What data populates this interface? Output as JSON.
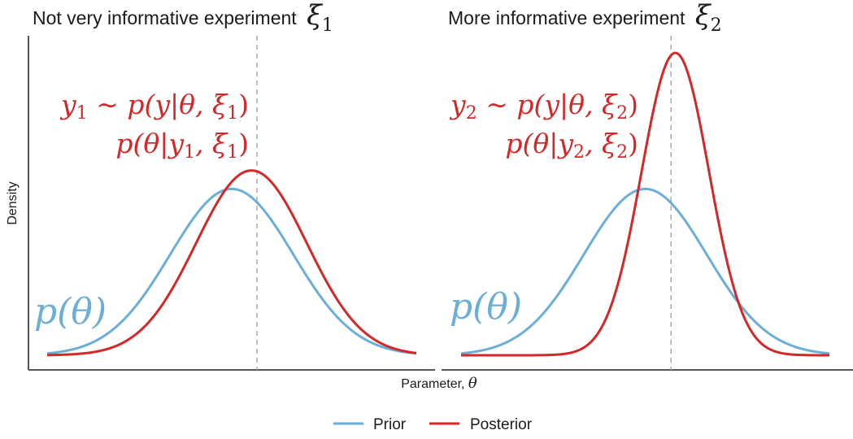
{
  "chart_data": {
    "type": "line",
    "xlabel": "Parameter, θ",
    "ylabel": "Density",
    "grid": false,
    "legend": {
      "placement": "bottom-center",
      "entries": [
        {
          "name": "Prior",
          "color": "#6baed6"
        },
        {
          "name": "Posterior",
          "color": "#d62728"
        }
      ]
    },
    "colors": {
      "prior": "#6baed6",
      "posterior": "#d62728",
      "reference_line": "#aaaaaa",
      "axis": "#555555"
    },
    "x_range": [
      -3,
      3
    ],
    "y_range": [
      0,
      0.78
    ],
    "panels": [
      {
        "title": "Not very informative experiment",
        "title_symbol": "ξ",
        "title_subscript": "1",
        "true_theta": 0.41,
        "annotations": {
          "likelihood": {
            "y": "y",
            "sub": "1",
            "rest": " ∼ p(y|θ, ξ",
            "sub2": "1",
            "close": ")"
          },
          "posterior": {
            "text": "p(θ|y",
            "sub": "1",
            "mid": ", ξ",
            "sub2": "1",
            "close": ")"
          },
          "prior": "p(θ)"
        },
        "series": [
          {
            "name": "Prior",
            "distribution": "normal",
            "mean": 0.0,
            "sd": 1.0
          },
          {
            "name": "Posterior",
            "distribution": "normal",
            "mean": 0.32,
            "sd": 0.9
          }
        ]
      },
      {
        "title": "More informative experiment",
        "title_symbol": "ξ",
        "title_subscript": "2",
        "true_theta": 0.42,
        "annotations": {
          "likelihood": {
            "y": "y",
            "sub": "2",
            "rest": " ∼ p(y|θ, ξ",
            "sub2": "2",
            "close": ")"
          },
          "posterior": {
            "text": "p(θ|y",
            "sub": "2",
            "mid": ", ξ",
            "sub2": "2",
            "close": ")"
          },
          "prior": "p(θ)"
        },
        "series": [
          {
            "name": "Prior",
            "distribution": "normal",
            "mean": 0.0,
            "sd": 1.0
          },
          {
            "name": "Posterior",
            "distribution": "normal",
            "mean": 0.49,
            "sd": 0.55
          }
        ]
      }
    ]
  }
}
